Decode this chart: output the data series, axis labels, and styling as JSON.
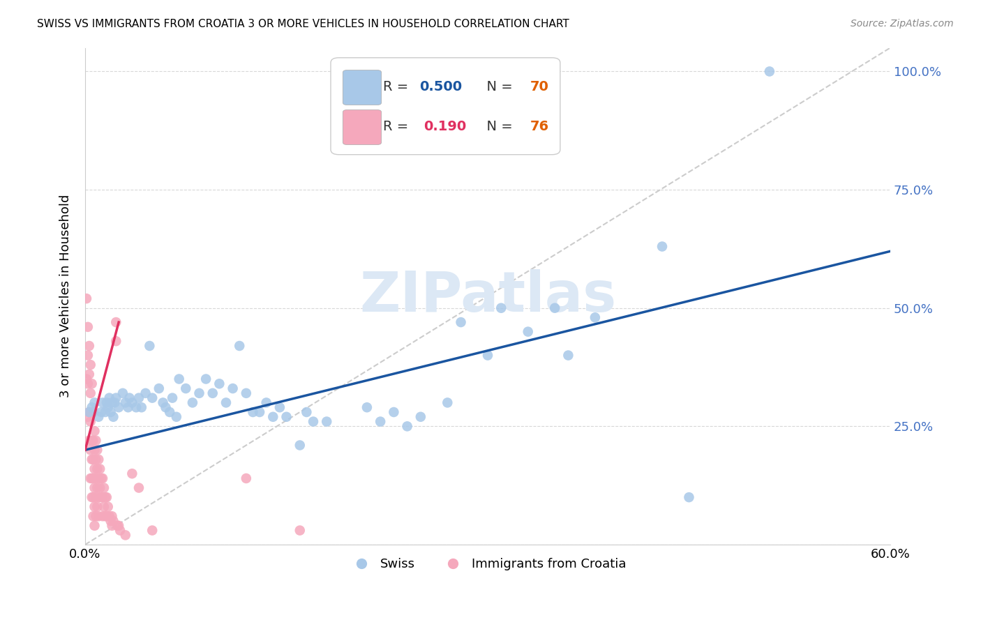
{
  "title": "SWISS VS IMMIGRANTS FROM CROATIA 3 OR MORE VEHICLES IN HOUSEHOLD CORRELATION CHART",
  "source": "Source: ZipAtlas.com",
  "ylabel": "3 or more Vehicles in Household",
  "xlim": [
    0.0,
    0.6
  ],
  "ylim": [
    0.0,
    1.05
  ],
  "swiss_R": 0.5,
  "swiss_N": 70,
  "croatia_R": 0.19,
  "croatia_N": 76,
  "swiss_color": "#a8c8e8",
  "croatia_color": "#f5a8bc",
  "swiss_line_color": "#1a55a0",
  "croatia_line_color": "#e03060",
  "diagonal_color": "#cccccc",
  "watermark": "ZIPatlas",
  "watermark_color": "#dce8f5",
  "swiss_points_x": [
    0.003,
    0.005,
    0.007,
    0.01,
    0.012,
    0.013,
    0.015,
    0.016,
    0.017,
    0.018,
    0.019,
    0.02,
    0.021,
    0.022,
    0.023,
    0.025,
    0.028,
    0.03,
    0.032,
    0.033,
    0.035,
    0.038,
    0.04,
    0.042,
    0.045,
    0.048,
    0.05,
    0.055,
    0.058,
    0.06,
    0.063,
    0.065,
    0.068,
    0.07,
    0.075,
    0.08,
    0.085,
    0.09,
    0.095,
    0.1,
    0.105,
    0.11,
    0.115,
    0.12,
    0.125,
    0.13,
    0.135,
    0.14,
    0.145,
    0.15,
    0.16,
    0.165,
    0.17,
    0.18,
    0.21,
    0.22,
    0.23,
    0.24,
    0.25,
    0.27,
    0.28,
    0.3,
    0.31,
    0.33,
    0.35,
    0.36,
    0.38,
    0.43,
    0.45,
    0.51
  ],
  "swiss_points_y": [
    0.28,
    0.29,
    0.3,
    0.27,
    0.28,
    0.3,
    0.28,
    0.3,
    0.29,
    0.31,
    0.28,
    0.3,
    0.27,
    0.3,
    0.31,
    0.29,
    0.32,
    0.3,
    0.29,
    0.31,
    0.3,
    0.29,
    0.31,
    0.29,
    0.32,
    0.42,
    0.31,
    0.33,
    0.3,
    0.29,
    0.28,
    0.31,
    0.27,
    0.35,
    0.33,
    0.3,
    0.32,
    0.35,
    0.32,
    0.34,
    0.3,
    0.33,
    0.42,
    0.32,
    0.28,
    0.28,
    0.3,
    0.27,
    0.29,
    0.27,
    0.21,
    0.28,
    0.26,
    0.26,
    0.29,
    0.26,
    0.28,
    0.25,
    0.27,
    0.3,
    0.47,
    0.4,
    0.5,
    0.45,
    0.5,
    0.4,
    0.48,
    0.63,
    0.1,
    1.0
  ],
  "croatia_points_x": [
    0.001,
    0.001,
    0.002,
    0.002,
    0.002,
    0.002,
    0.003,
    0.003,
    0.003,
    0.003,
    0.004,
    0.004,
    0.004,
    0.004,
    0.004,
    0.005,
    0.005,
    0.005,
    0.005,
    0.005,
    0.005,
    0.006,
    0.006,
    0.006,
    0.006,
    0.006,
    0.006,
    0.007,
    0.007,
    0.007,
    0.007,
    0.007,
    0.007,
    0.008,
    0.008,
    0.008,
    0.008,
    0.008,
    0.009,
    0.009,
    0.009,
    0.009,
    0.01,
    0.01,
    0.01,
    0.01,
    0.011,
    0.011,
    0.012,
    0.012,
    0.013,
    0.013,
    0.013,
    0.014,
    0.014,
    0.015,
    0.015,
    0.016,
    0.016,
    0.017,
    0.018,
    0.019,
    0.02,
    0.02,
    0.021,
    0.023,
    0.023,
    0.024,
    0.025,
    0.026,
    0.03,
    0.035,
    0.04,
    0.05,
    0.12,
    0.16
  ],
  "croatia_points_y": [
    0.52,
    0.35,
    0.46,
    0.4,
    0.34,
    0.27,
    0.42,
    0.36,
    0.28,
    0.22,
    0.38,
    0.32,
    0.26,
    0.2,
    0.14,
    0.34,
    0.28,
    0.22,
    0.18,
    0.14,
    0.1,
    0.28,
    0.22,
    0.18,
    0.14,
    0.1,
    0.06,
    0.24,
    0.2,
    0.16,
    0.12,
    0.08,
    0.04,
    0.22,
    0.18,
    0.14,
    0.1,
    0.06,
    0.2,
    0.16,
    0.12,
    0.08,
    0.18,
    0.14,
    0.1,
    0.06,
    0.16,
    0.12,
    0.14,
    0.1,
    0.14,
    0.1,
    0.06,
    0.12,
    0.08,
    0.1,
    0.06,
    0.1,
    0.06,
    0.08,
    0.06,
    0.05,
    0.06,
    0.04,
    0.05,
    0.43,
    0.47,
    0.04,
    0.04,
    0.03,
    0.02,
    0.15,
    0.12,
    0.03,
    0.14,
    0.03
  ],
  "legend_box_color": "#f0f0f0",
  "legend_border_color": "#cccccc",
  "right_axis_color": "#4472c4",
  "grid_color": "#d8d8d8",
  "spine_color": "#cccccc"
}
